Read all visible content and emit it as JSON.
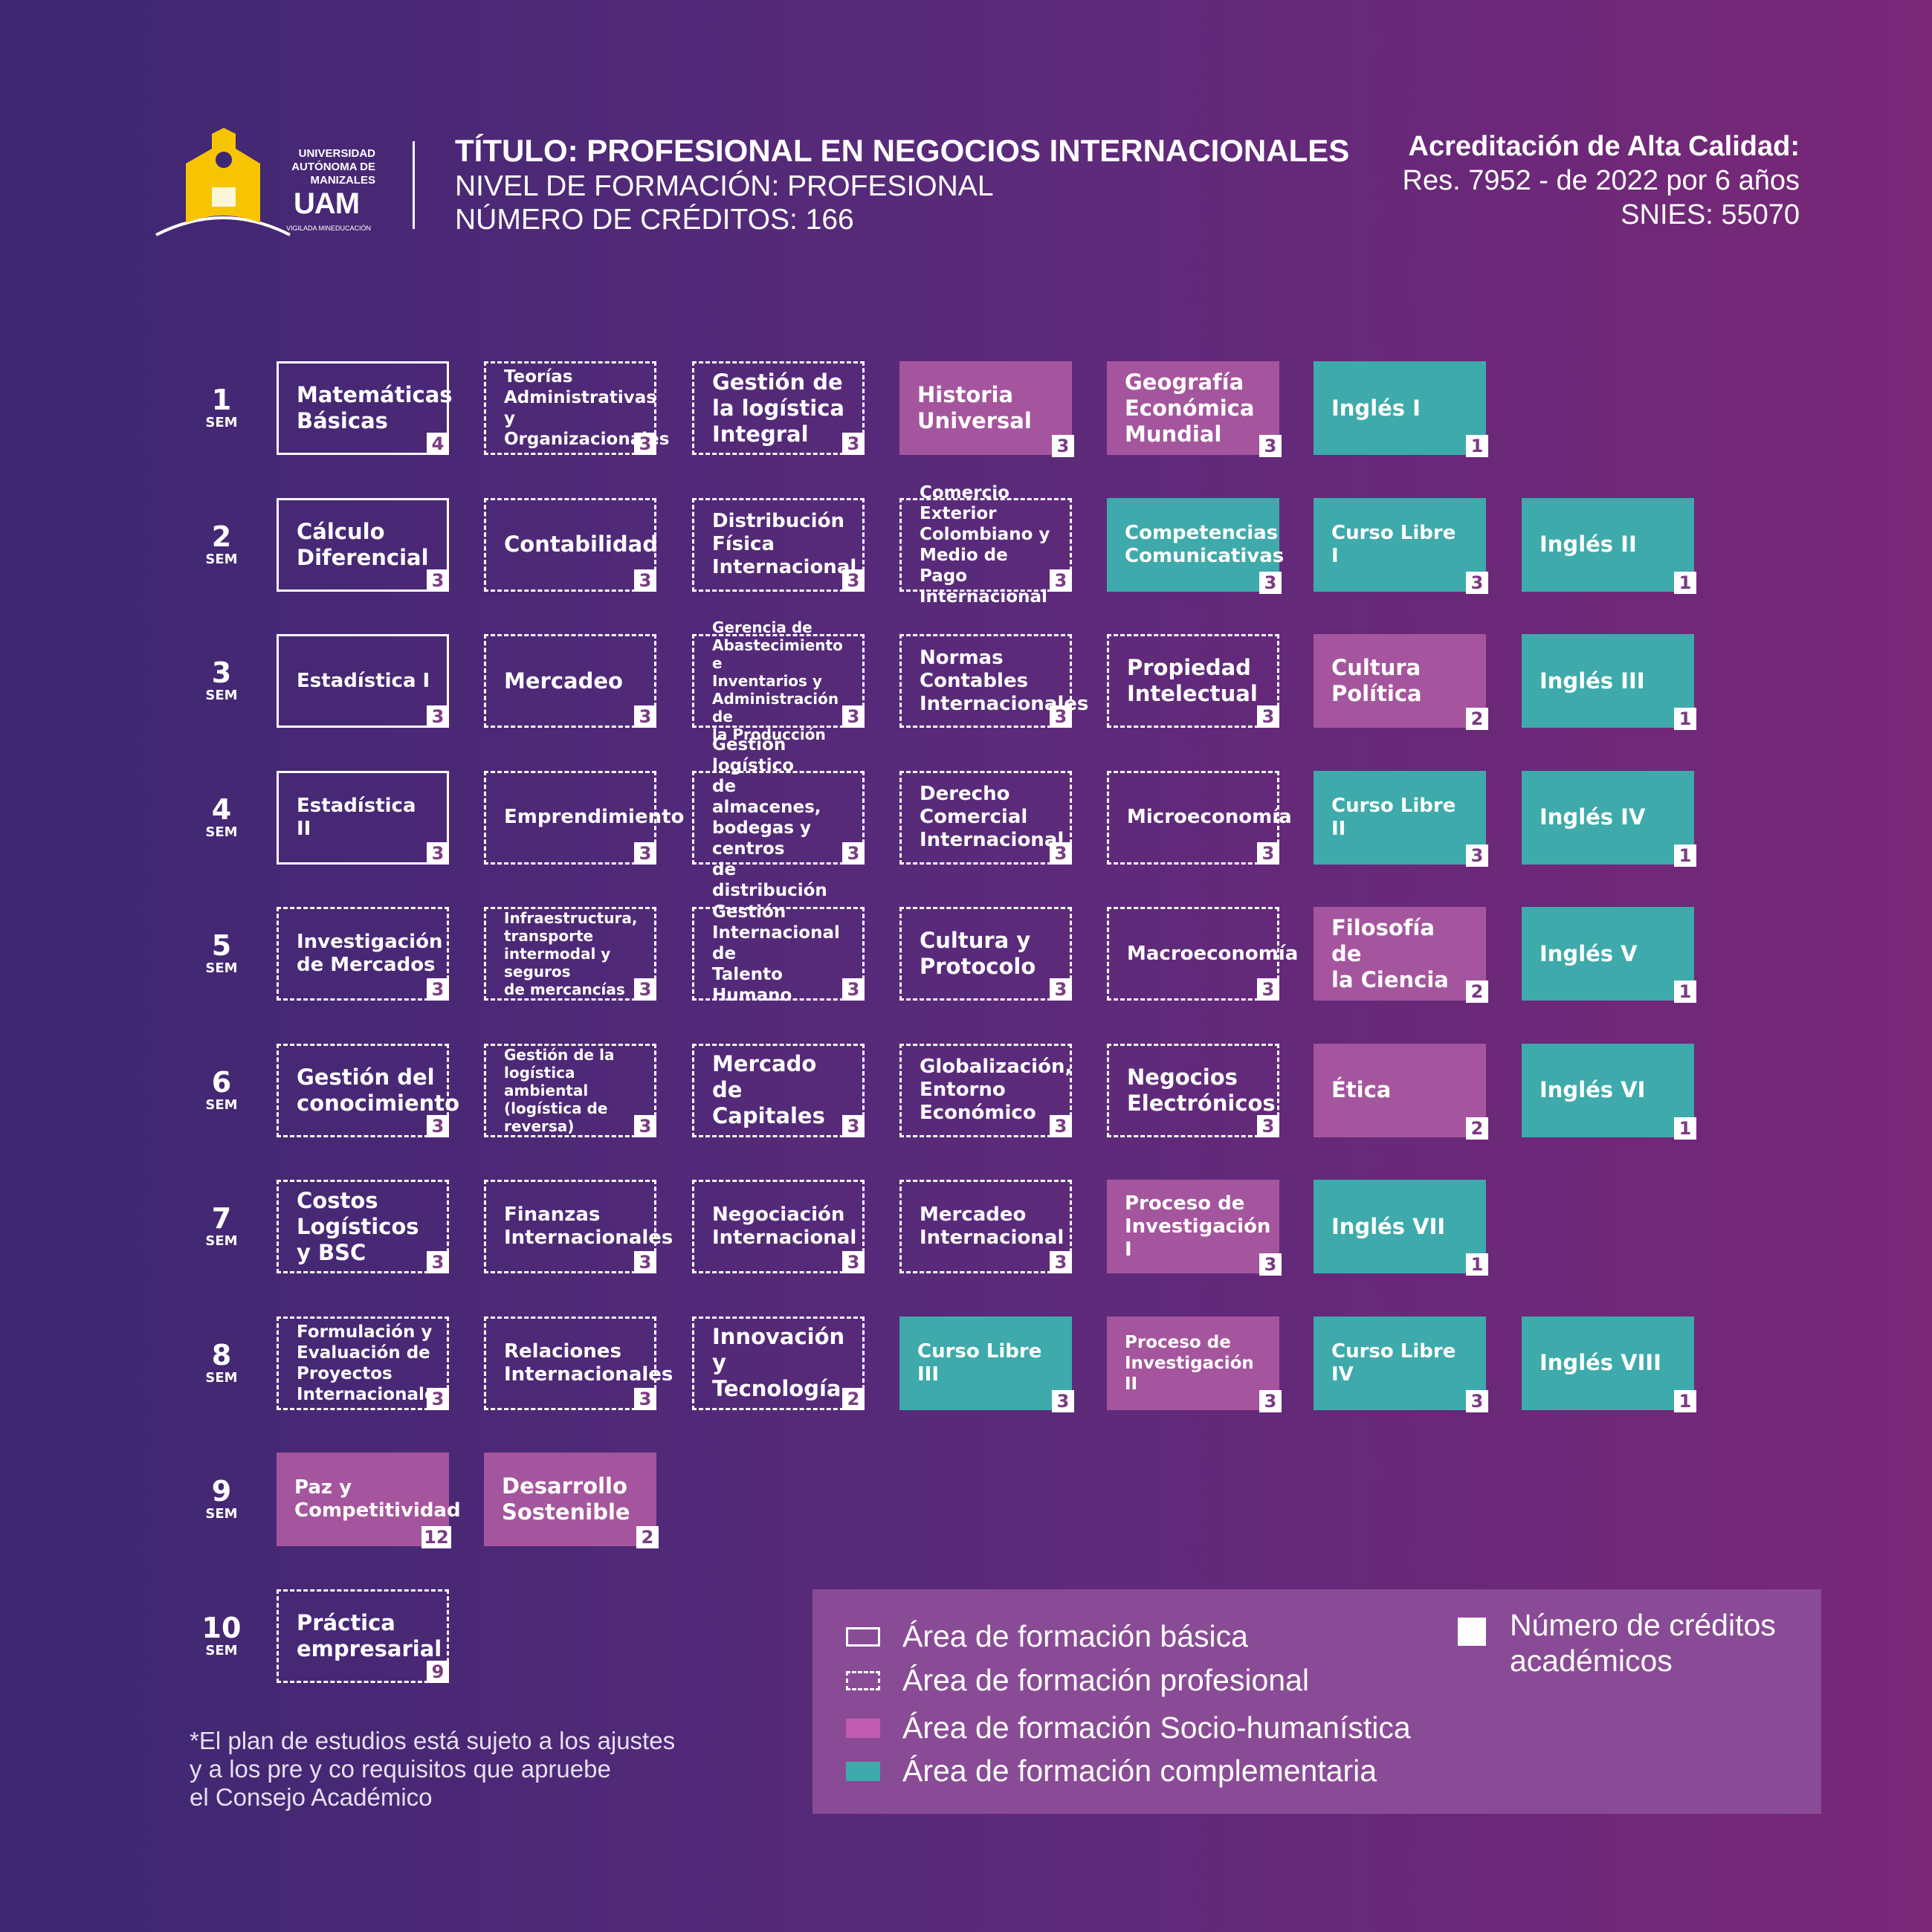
{
  "university": {
    "line1": "UNIVERSIDAD",
    "line2": "AUTÓNOMA DE",
    "line3": "MANIZALES",
    "brand": "UAM",
    "vigilada": "VIGILADA MINEDUCACIÓN"
  },
  "header": {
    "titulo": "TÍTULO: PROFESIONAL EN NEGOCIOS INTERNACIONALES",
    "nivel": "NIVEL DE FORMACIÓN: PROFESIONAL",
    "creditos": "NÚMERO DE CRÉDITOS: 166"
  },
  "acreditacion": {
    "line1": "Acreditación de Alta Calidad:",
    "line2": "Res. 7952 - de 2022 por 6 años",
    "line3": "SNIES: 55070"
  },
  "sem_suffix": "SEM",
  "semesters": [
    {
      "number": "1",
      "courses": [
        {
          "name": "Matemáticas\nBásicas",
          "credits": "4",
          "area": "basica"
        },
        {
          "name": "Teorías\nAdministrativas y\nOrganizacionales",
          "credits": "3",
          "area": "profesional"
        },
        {
          "name": "Gestión de\nla logística\nIntegral",
          "credits": "3",
          "area": "profesional"
        },
        {
          "name": "Historia\nUniversal",
          "credits": "3",
          "area": "socio"
        },
        {
          "name": "Geografía\nEconómica\nMundial",
          "credits": "3",
          "area": "socio"
        },
        {
          "name": "Inglés I",
          "credits": "1",
          "area": "comp"
        }
      ]
    },
    {
      "number": "2",
      "courses": [
        {
          "name": "Cálculo\nDiferencial",
          "credits": "3",
          "area": "basica"
        },
        {
          "name": "Contabilidad",
          "credits": "3",
          "area": "profesional"
        },
        {
          "name": "Distribución\nFísica\nInternacional",
          "credits": "3",
          "area": "profesional"
        },
        {
          "name": "Comercio Exterior\nColombiano y\nMedio de Pago\nInternacional",
          "credits": "3",
          "area": "profesional"
        },
        {
          "name": "Competencias\nComunicativas",
          "credits": "3",
          "area": "comp"
        },
        {
          "name": "Curso Libre I",
          "credits": "3",
          "area": "comp"
        },
        {
          "name": "Inglés II",
          "credits": "1",
          "area": "comp"
        }
      ]
    },
    {
      "number": "3",
      "courses": [
        {
          "name": "Estadística I",
          "credits": "3",
          "area": "basica"
        },
        {
          "name": "Mercadeo",
          "credits": "3",
          "area": "profesional"
        },
        {
          "name": "Gerencia de\nAbastecimiento e\nInventarios y\nAdministración de\nla Producción",
          "credits": "3",
          "area": "profesional"
        },
        {
          "name": "Normas\nContables\nInternacionales",
          "credits": "3",
          "area": "profesional"
        },
        {
          "name": "Propiedad\nIntelectual",
          "credits": "3",
          "area": "profesional"
        },
        {
          "name": "Cultura\nPolítica",
          "credits": "2",
          "area": "socio"
        },
        {
          "name": "Inglés III",
          "credits": "1",
          "area": "comp"
        }
      ]
    },
    {
      "number": "4",
      "courses": [
        {
          "name": "Estadística II",
          "credits": "3",
          "area": "basica"
        },
        {
          "name": "Emprendimiento",
          "credits": "3",
          "area": "profesional"
        },
        {
          "name": "Gestión logístico\nde almacenes,\nbodegas y centros\nde distribución",
          "credits": "3",
          "area": "profesional"
        },
        {
          "name": "Derecho\nComercial\nInternacional",
          "credits": "3",
          "area": "profesional"
        },
        {
          "name": "Microeconomía",
          "credits": "3",
          "area": "profesional"
        },
        {
          "name": "Curso Libre II",
          "credits": "3",
          "area": "comp"
        },
        {
          "name": "Inglés IV",
          "credits": "1",
          "area": "comp"
        }
      ]
    },
    {
      "number": "5",
      "courses": [
        {
          "name": "Investigación\nde Mercados",
          "credits": "3",
          "area": "profesional"
        },
        {
          "name": "Infraestructura,\ntransporte\nintermodal y seguros\nde mercancías",
          "credits": "3",
          "area": "profesional"
        },
        {
          "name": "Gestión\nInternacional de\nTalento Humano",
          "credits": "3",
          "area": "profesional"
        },
        {
          "name": "Cultura y\nProtocolo",
          "credits": "3",
          "area": "profesional"
        },
        {
          "name": "Macroeconomía",
          "credits": "3",
          "area": "profesional"
        },
        {
          "name": "Filosofía de\nla Ciencia",
          "credits": "2",
          "area": "socio"
        },
        {
          "name": "Inglés V",
          "credits": "1",
          "area": "comp"
        }
      ]
    },
    {
      "number": "6",
      "courses": [
        {
          "name": "Gestión del\nconocimiento",
          "credits": "3",
          "area": "profesional"
        },
        {
          "name": "Gestión de la\nlogística ambiental\n(logística de reversa)",
          "credits": "3",
          "area": "profesional"
        },
        {
          "name": "Mercado de\nCapitales",
          "credits": "3",
          "area": "profesional"
        },
        {
          "name": "Globalización,\nEntorno\nEconómico",
          "credits": "3",
          "area": "profesional"
        },
        {
          "name": "Negocios\nElectrónicos",
          "credits": "3",
          "area": "profesional"
        },
        {
          "name": "Ética",
          "credits": "2",
          "area": "socio"
        },
        {
          "name": "Inglés VI",
          "credits": "1",
          "area": "comp"
        }
      ]
    },
    {
      "number": "7",
      "courses": [
        {
          "name": "Costos\nLogísticos\ny BSC",
          "credits": "3",
          "area": "profesional"
        },
        {
          "name": "Finanzas\nInternacionales",
          "credits": "3",
          "area": "profesional"
        },
        {
          "name": "Negociación\nInternacional",
          "credits": "3",
          "area": "profesional"
        },
        {
          "name": "Mercadeo\nInternacional",
          "credits": "3",
          "area": "profesional"
        },
        {
          "name": "Proceso de\nInvestigación I",
          "credits": "3",
          "area": "socio"
        },
        {
          "name": "Inglés VII",
          "credits": "1",
          "area": "comp"
        }
      ]
    },
    {
      "number": "8",
      "courses": [
        {
          "name": "Formulación y\nEvaluación de\nProyectos\nInternacionales",
          "credits": "3",
          "area": "profesional"
        },
        {
          "name": "Relaciones\nInternacionales",
          "credits": "3",
          "area": "profesional"
        },
        {
          "name": "Innovación y\nTecnología",
          "credits": "2",
          "area": "profesional"
        },
        {
          "name": "Curso Libre III",
          "credits": "3",
          "area": "comp"
        },
        {
          "name": "Proceso de\nInvestigación II",
          "credits": "3",
          "area": "socio"
        },
        {
          "name": "Curso Libre IV",
          "credits": "3",
          "area": "comp"
        },
        {
          "name": "Inglés VIII",
          "credits": "1",
          "area": "comp"
        }
      ]
    },
    {
      "number": "9",
      "courses": [
        {
          "name": "Paz y\nCompetitividad",
          "credits": "12",
          "area": "socio"
        },
        {
          "name": "Desarrollo\nSostenible",
          "credits": "2",
          "area": "socio"
        }
      ]
    },
    {
      "number": "10",
      "courses": [
        {
          "name": "Práctica\nempresarial",
          "credits": "9",
          "area": "profesional"
        }
      ]
    }
  ],
  "legend": {
    "basica": "Área de formación básica",
    "profesional": "Área de formación profesional",
    "socio": "Área de formación Socio-humanística",
    "comp": "Área de formación complementaria",
    "creditos": "Número de créditos\nacadémicos"
  },
  "note": "*El plan de estudios está sujeto a los ajustes\ny a los pre y co requisitos que apruebe\nel Consejo Académico",
  "colors": {
    "socio": "#a5559d",
    "comp": "#3eaaab",
    "badge_text": "#7b3a83"
  }
}
